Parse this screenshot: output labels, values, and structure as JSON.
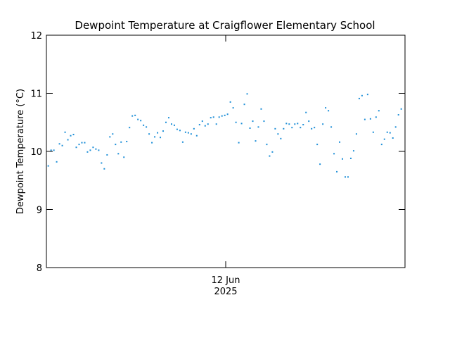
{
  "chart_data": {
    "type": "scatter",
    "title": "Dewpoint Temperature at Craigflower Elementary School",
    "y_label": "Dewpoint Temperature (°C)",
    "xlim": [
      0,
      48
    ],
    "xticks": [
      {
        "value": 24,
        "label": "12 Jun\n2025"
      }
    ],
    "ylim": [
      8,
      12
    ],
    "yticks": [
      8,
      9,
      10,
      11,
      12
    ],
    "series": [
      {
        "name": "Dewpoint Temperature",
        "color": "#1e8fd8",
        "x": [
          0.25,
          0.625,
          1,
          1.375,
          1.75,
          2.125,
          2.5,
          2.875,
          3.25,
          3.625,
          4,
          4.375,
          4.75,
          5.125,
          5.5,
          5.875,
          6.25,
          6.625,
          7,
          7.375,
          7.75,
          8.125,
          8.5,
          8.875,
          9.25,
          9.625,
          10,
          10.375,
          10.75,
          11.125,
          11.5,
          11.875,
          12.25,
          12.625,
          13,
          13.375,
          13.75,
          14.125,
          14.5,
          14.875,
          15.25,
          15.625,
          16,
          16.375,
          16.75,
          17.125,
          17.5,
          17.875,
          18.25,
          18.625,
          19,
          19.375,
          19.75,
          20.125,
          20.5,
          20.875,
          21.25,
          21.625,
          22,
          22.375,
          22.75,
          23.125,
          23.5,
          23.875,
          24.25,
          24.625,
          25,
          25.375,
          25.75,
          26.125,
          26.5,
          26.875,
          27.25,
          27.625,
          28,
          28.375,
          28.75,
          29.125,
          29.5,
          29.875,
          30.25,
          30.625,
          31,
          31.375,
          31.75,
          32.125,
          32.5,
          32.875,
          33.25,
          33.625,
          34,
          34.375,
          34.75,
          35.125,
          35.5,
          35.875,
          36.25,
          36.625,
          37,
          37.375,
          37.75,
          38.125,
          38.5,
          38.875,
          39.25,
          39.625,
          40,
          40.375,
          40.75,
          41.125,
          41.5,
          41.875,
          42.25,
          42.625,
          43,
          43.375,
          43.75,
          44.125,
          44.5,
          44.875,
          45.25,
          45.625,
          46,
          46.375,
          46.75,
          47.125,
          47.5
        ],
        "values": [
          9.75,
          10.02,
          10.02,
          9.82,
          10.13,
          10.1,
          10.33,
          10.2,
          10.27,
          10.29,
          10.07,
          10.12,
          10.15,
          10.15,
          9.99,
          10.02,
          10.07,
          10.04,
          10.02,
          9.8,
          9.7,
          9.94,
          10.25,
          10.3,
          10.12,
          9.96,
          10.16,
          9.9,
          10.17,
          10.41,
          10.61,
          10.62,
          10.55,
          10.53,
          10.45,
          10.42,
          10.3,
          10.15,
          10.25,
          10.32,
          10.24,
          10.35,
          10.5,
          10.58,
          10.47,
          10.45,
          10.38,
          10.36,
          10.16,
          10.33,
          10.32,
          10.3,
          10.39,
          10.27,
          10.46,
          10.52,
          10.44,
          10.47,
          10.58,
          10.59,
          10.47,
          10.59,
          10.61,
          10.62,
          10.64,
          10.85,
          10.75,
          10.5,
          10.15,
          10.48,
          10.81,
          10.99,
          10.4,
          10.52,
          10.18,
          10.42,
          10.73,
          10.52,
          10.12,
          9.92,
          9.99,
          10.39,
          10.3,
          10.22,
          10.39,
          10.48,
          10.47,
          10.41,
          10.47,
          10.48,
          10.41,
          10.46,
          10.67,
          10.52,
          10.39,
          10.41,
          10.12,
          9.78,
          10.47,
          10.75,
          10.7,
          10.42,
          9.96,
          9.65,
          10.16,
          9.87,
          9.56,
          9.56,
          9.88,
          10.01,
          10.3,
          10.91,
          10.96,
          10.55,
          10.98,
          10.56,
          10.33,
          10.59,
          10.7,
          10.12,
          10.21,
          10.33,
          10.32,
          10.23,
          10.42,
          10.63,
          10.73
        ]
      }
    ]
  }
}
